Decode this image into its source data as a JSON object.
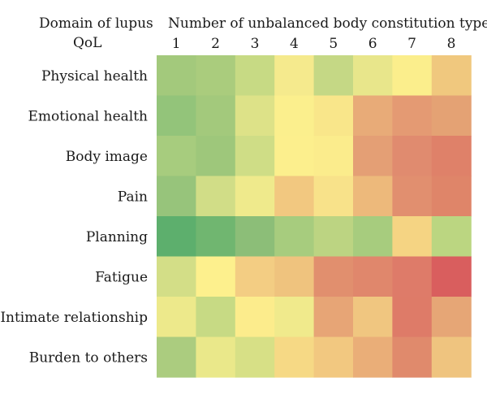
{
  "chart_data": {
    "type": "heatmap",
    "row_header": [
      "Domain of lupus",
      "QoL"
    ],
    "column_header": "Number of unbalanced body constitution types",
    "columns": [
      "1",
      "2",
      "3",
      "4",
      "5",
      "6",
      "7",
      "8"
    ],
    "rows": [
      "Physical health",
      "Emotional health",
      "Body image",
      "Pain",
      "Planning",
      "Fatigue",
      "Intimate relationship",
      "Burden to others"
    ],
    "colors": [
      [
        "#a3c97c",
        "#aacc7d",
        "#c7da84",
        "#f5ea8d",
        "#c5d885",
        "#e8e68b",
        "#fbee8c",
        "#f0c87e"
      ],
      [
        "#93c47a",
        "#a3c97c",
        "#dde288",
        "#fbef8d",
        "#f9e68a",
        "#e8ab78",
        "#e49a73",
        "#e4a274"
      ],
      [
        "#a7cc7e",
        "#9ec77b",
        "#cfdd86",
        "#fcef8d",
        "#fbec8c",
        "#e49f75",
        "#e08b6f",
        "#df8169"
      ],
      [
        "#97c47b",
        "#d1dd87",
        "#efea8c",
        "#f2c880",
        "#f8e28a",
        "#edb97b",
        "#e18f6f",
        "#df8569"
      ],
      [
        "#5daf6d",
        "#70b670",
        "#8cbe78",
        "#a7cc7e",
        "#bcd482",
        "#a7cc7e",
        "#f5d483",
        "#bbd681"
      ],
      [
        "#d3de87",
        "#fdf08d",
        "#f3cd83",
        "#efc37e",
        "#e18f6e",
        "#e0876c",
        "#de7b69",
        "#d95e5e"
      ],
      [
        "#ede98b",
        "#c7da84",
        "#fcec8c",
        "#f0ea8c",
        "#e7a576",
        "#f0c680",
        "#de7b68",
        "#e6a676"
      ],
      [
        "#abcc7f",
        "#eae88a",
        "#d7e086",
        "#f6d985",
        "#f2c880",
        "#eaae78",
        "#e08a6c",
        "#efc47f"
      ]
    ]
  }
}
